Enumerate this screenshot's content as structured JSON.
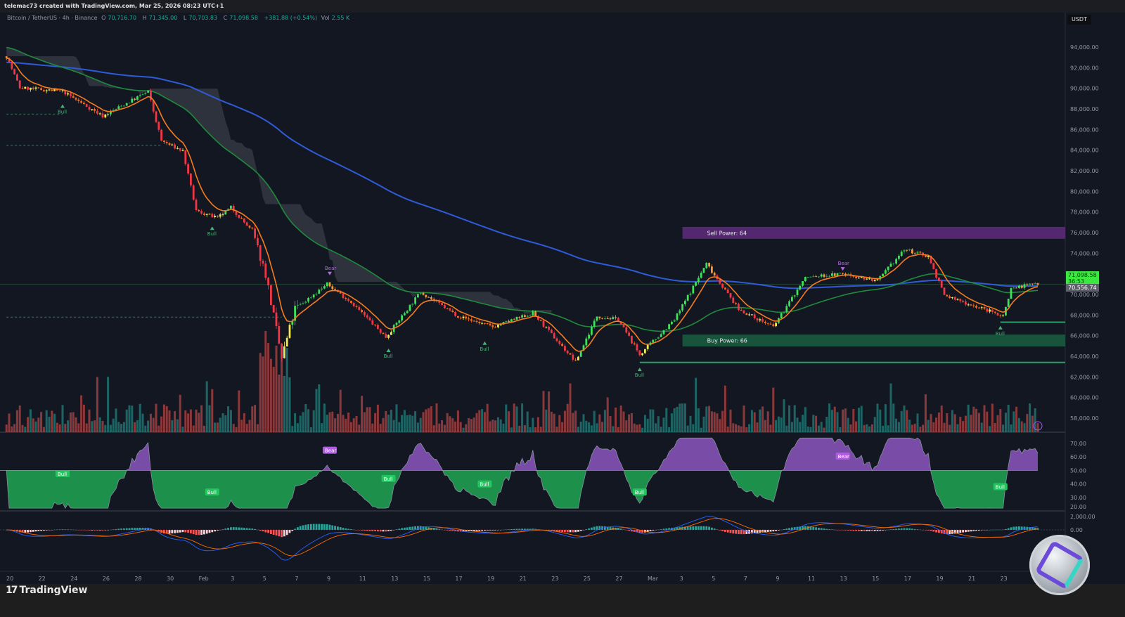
{
  "header": {
    "caption": "telemac73 created with TradingView.com, Mar 25, 2026 08:23 UTC+1"
  },
  "legend": {
    "symbol": "Bitcoin / TetherUS · 4h · Binance",
    "open_label": "O",
    "open": "70,716.70",
    "high_label": "H",
    "high": "71,345.00",
    "low_label": "L",
    "low": "70,703.83",
    "close_label": "C",
    "close": "71,098.58",
    "change": "+381.88 (+0.54%)",
    "vol_label": "Vol",
    "vol": "2.55 K"
  },
  "currency": "USDT",
  "price_tags": {
    "last": "71,098.58",
    "countdown": "36:53",
    "other": "70,556.74"
  },
  "footer": {
    "brand": "TradingView"
  },
  "colors": {
    "background": "#131722",
    "up": "#3fe05a",
    "down": "#f23645",
    "ema_fast": "#f57c1f",
    "ema_mid": "#1f8a3c",
    "ema_slow": "#2f5bd8",
    "sell_zone": "#5b2a7a",
    "buy_zone": "#1a5a3f",
    "rsi_bull": "#22c55e",
    "rsi_bear": "#9c5fd6"
  },
  "chart_data": {
    "type": "candlestick",
    "symbol": "BTCUSDT",
    "timeframe": "4h",
    "y_axis": {
      "min": 57000,
      "max": 95000,
      "ticks": [
        "94,000.00",
        "92,000.00",
        "90,000.00",
        "88,000.00",
        "86,000.00",
        "84,000.00",
        "82,000.00",
        "80,000.00",
        "78,000.00",
        "76,000.00",
        "74,000.00",
        "70,000.00",
        "68,000.00",
        "66,000.00",
        "64,000.00",
        "62,000.00",
        "60,000.00",
        "58,000.00"
      ]
    },
    "x_axis": {
      "ticks": [
        "20",
        "22",
        "24",
        "26",
        "28",
        "30",
        "Feb",
        "3",
        "5",
        "7",
        "9",
        "11",
        "13",
        "15",
        "17",
        "19",
        "21",
        "23",
        "25",
        "27",
        "Mar",
        "3",
        "5",
        "7",
        "9",
        "11",
        "13",
        "15",
        "17",
        "19",
        "21",
        "23"
      ]
    },
    "close_path": [
      [
        "2026-01-19 20:00",
        93100
      ],
      [
        "2026-01-20 16:00",
        90050
      ],
      [
        "2026-01-23 08:00",
        89700
      ],
      [
        "2026-01-25 20:00",
        87300
      ],
      [
        "2026-01-28 16:00",
        89700
      ],
      [
        "2026-01-29 12:00",
        84900
      ],
      [
        "2026-01-30 20:00",
        83900
      ],
      [
        "2026-01-31 16:00",
        78100
      ],
      [
        "2026-02-02 00:00",
        77400
      ],
      [
        "2026-02-02 20:00",
        78450
      ],
      [
        "2026-02-04 04:00",
        76100
      ],
      [
        "2026-02-05 00:00",
        72000
      ],
      [
        "2026-02-06 00:00",
        63800
      ],
      [
        "2026-02-06 20:00",
        68600
      ],
      [
        "2026-02-08 20:00",
        71000
      ],
      [
        "2026-02-10 08:00",
        69250
      ],
      [
        "2026-02-12 12:00",
        65850
      ],
      [
        "2026-02-14 16:00",
        70250
      ],
      [
        "2026-02-17 00:00",
        67900
      ],
      [
        "2026-02-19 04:00",
        66850
      ],
      [
        "2026-02-21 16:00",
        68200
      ],
      [
        "2026-02-24 08:00",
        63450
      ],
      [
        "2026-02-25 16:00",
        67900
      ],
      [
        "2026-02-27 00:00",
        67550
      ],
      [
        "2026-02-28 08:00",
        64150
      ],
      [
        "2026-03-02 12:00",
        67550
      ],
      [
        "2026-03-04 12:00",
        73000
      ],
      [
        "2026-03-06 12:00",
        68550
      ],
      [
        "2026-03-08 16:00",
        66850
      ],
      [
        "2026-03-10 16:00",
        71650
      ],
      [
        "2026-03-13 00:00",
        72000
      ],
      [
        "2026-03-15 04:00",
        71300
      ],
      [
        "2026-03-16 20:00",
        74350
      ],
      [
        "2026-03-18 08:00",
        73700
      ],
      [
        "2026-03-19 08:00",
        69900
      ],
      [
        "2026-03-21 20:00",
        68550
      ],
      [
        "2026-03-23 00:00",
        67900
      ],
      [
        "2026-03-23 12:00",
        70600
      ],
      [
        "2026-03-25 04:00",
        71100
      ]
    ],
    "zones": [
      {
        "label": "Sell Power: 64",
        "from": "2026-03-03 00:00",
        "top": 76550,
        "bottom": 75400,
        "kind": "sell"
      },
      {
        "label": "Buy Power: 66",
        "from": "2026-03-03 00:00",
        "top": 66100,
        "bottom": 64950,
        "kind": "buy"
      }
    ],
    "levels": [
      {
        "price": 63400,
        "from": "2026-02-28 08:00",
        "style": "solid"
      },
      {
        "price": 67300,
        "from": "2026-03-22 20:00",
        "style": "solid"
      },
      {
        "price": 87500,
        "from": "2026-01-19 20:00",
        "to": "2026-01-23 08:00",
        "style": "dashed"
      },
      {
        "price": 84450,
        "from": "2026-01-19 20:00",
        "to": "2026-01-29 12:00",
        "style": "dashed"
      },
      {
        "price": 67800,
        "from": "2026-01-19 20:00",
        "to": "2026-02-06 00:00",
        "style": "dashed"
      }
    ],
    "signals": [
      {
        "label": "Bull",
        "time": "2026-01-23 08:00",
        "price": 87900,
        "rsi": 47.6
      },
      {
        "label": "Bull",
        "time": "2026-02-01 16:00",
        "price": 76050,
        "rsi": 34
      },
      {
        "label": "Bear",
        "time": "2026-02-09 00:00",
        "price": 72400,
        "rsi": 65
      },
      {
        "label": "Bull",
        "time": "2026-02-12 16:00",
        "price": 64200,
        "rsi": 44
      },
      {
        "label": "Bull",
        "time": "2026-02-18 16:00",
        "price": 64900,
        "rsi": 40
      },
      {
        "label": "Bull",
        "time": "2026-02-28 08:00",
        "price": 62350,
        "rsi": 34
      },
      {
        "label": "Bear",
        "time": "2026-03-13 00:00",
        "price": 72850,
        "rsi": 60.6
      },
      {
        "label": "Bull",
        "time": "2026-03-22 20:00",
        "price": 66400,
        "rsi": 38
      }
    ],
    "rsi": {
      "ticks": [
        "70.00",
        "60.00",
        "50.00",
        "40.00",
        "30.00",
        "20.00"
      ],
      "range": [
        20,
        75
      ],
      "midline": 50
    },
    "macd": {
      "ticks": [
        "2,000.00",
        "0.00"
      ]
    }
  }
}
